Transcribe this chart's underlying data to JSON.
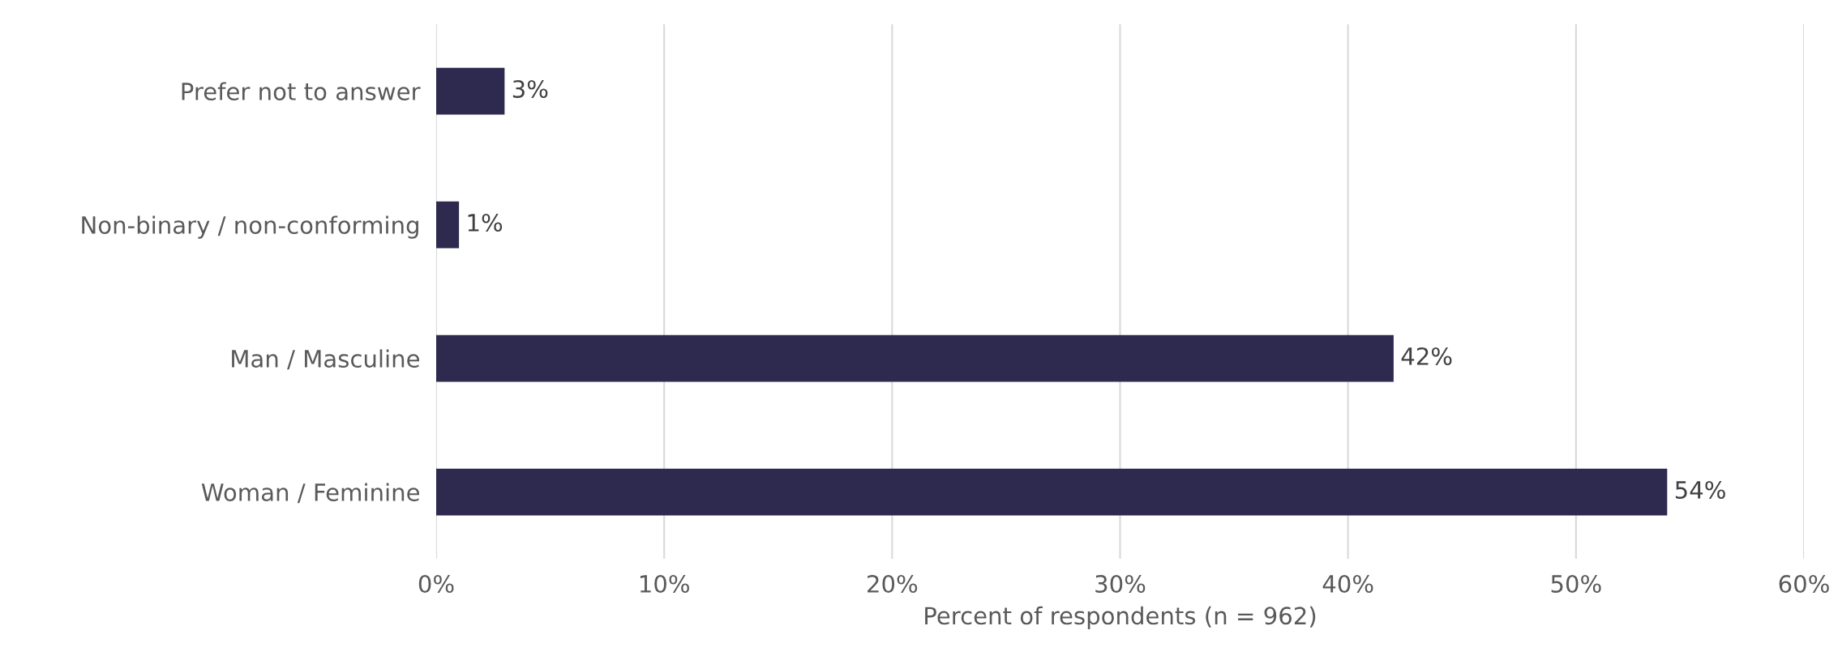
{
  "chart_data": {
    "type": "bar",
    "orientation": "horizontal",
    "xlabel": "Percent of respondents (n = 962)",
    "categories": [
      "Prefer not to answer",
      "Non-binary / non-conforming",
      "Man / Masculine",
      "Woman / Feminine"
    ],
    "values": [
      3,
      1,
      42,
      54
    ],
    "value_labels": [
      "3%",
      "1%",
      "42%",
      "54%"
    ],
    "color": "#2e2a4f",
    "xlim": [
      0,
      60
    ],
    "xticks": [
      {
        "value": 0,
        "label": "0%"
      },
      {
        "value": 10,
        "label": "10%"
      },
      {
        "value": 20,
        "label": "20%"
      },
      {
        "value": 30,
        "label": "30%"
      },
      {
        "value": 40,
        "label": "40%"
      },
      {
        "value": 50,
        "label": "50%"
      },
      {
        "value": 60,
        "label": "60%"
      }
    ],
    "grid": "x",
    "legend": false
  }
}
